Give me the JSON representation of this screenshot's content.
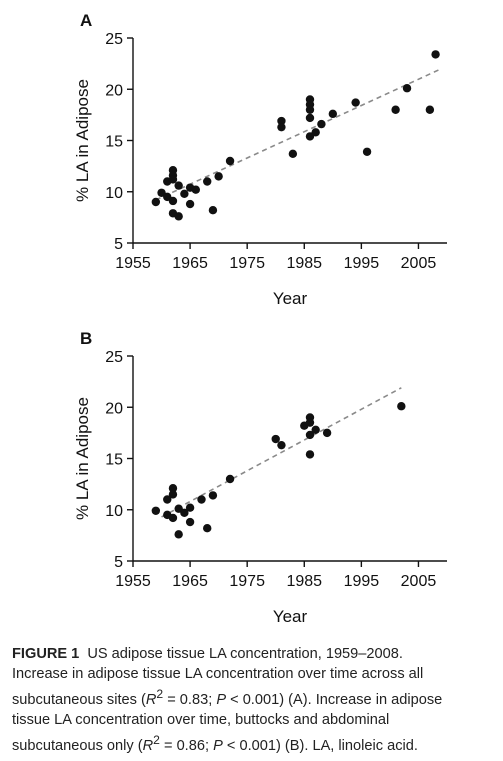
{
  "chart_data": [
    {
      "type": "scatter",
      "panel_label": "A",
      "xlabel": "Year",
      "ylabel": "% LA in Adipose",
      "xlim": [
        1955,
        2010
      ],
      "ylim": [
        5,
        25
      ],
      "x_ticks": [
        1955,
        1965,
        1975,
        1985,
        1995,
        2005
      ],
      "y_ticks": [
        5,
        10,
        15,
        20,
        25
      ],
      "trendline": {
        "style": "dashed",
        "color": "#8a8a8a",
        "x": [
          1959,
          2009
        ],
        "y": [
          9.2,
          22.0
        ]
      },
      "marker_color": "#111111",
      "points": [
        {
          "x": 1959,
          "y": 9.0
        },
        {
          "x": 1960,
          "y": 9.9
        },
        {
          "x": 1961,
          "y": 11.0
        },
        {
          "x": 1961,
          "y": 9.5
        },
        {
          "x": 1962,
          "y": 12.1
        },
        {
          "x": 1962,
          "y": 11.6
        },
        {
          "x": 1962,
          "y": 11.2
        },
        {
          "x": 1962,
          "y": 9.1
        },
        {
          "x": 1962,
          "y": 7.9
        },
        {
          "x": 1963,
          "y": 7.6
        },
        {
          "x": 1963,
          "y": 10.6
        },
        {
          "x": 1964,
          "y": 9.8
        },
        {
          "x": 1965,
          "y": 10.4
        },
        {
          "x": 1965,
          "y": 8.8
        },
        {
          "x": 1966,
          "y": 10.2
        },
        {
          "x": 1968,
          "y": 11.0
        },
        {
          "x": 1969,
          "y": 8.2
        },
        {
          "x": 1970,
          "y": 11.5
        },
        {
          "x": 1972,
          "y": 13.0
        },
        {
          "x": 1981,
          "y": 16.9
        },
        {
          "x": 1981,
          "y": 16.3
        },
        {
          "x": 1983,
          "y": 13.7
        },
        {
          "x": 1986,
          "y": 19.0
        },
        {
          "x": 1986,
          "y": 18.5
        },
        {
          "x": 1986,
          "y": 18.0
        },
        {
          "x": 1986,
          "y": 17.2
        },
        {
          "x": 1986,
          "y": 15.4
        },
        {
          "x": 1987,
          "y": 15.8
        },
        {
          "x": 1988,
          "y": 16.6
        },
        {
          "x": 1990,
          "y": 17.6
        },
        {
          "x": 1994,
          "y": 18.7
        },
        {
          "x": 1996,
          "y": 13.9
        },
        {
          "x": 2001,
          "y": 18.0
        },
        {
          "x": 2003,
          "y": 20.1
        },
        {
          "x": 2007,
          "y": 18.0
        },
        {
          "x": 2008,
          "y": 23.4
        }
      ]
    },
    {
      "type": "scatter",
      "panel_label": "B",
      "xlabel": "Year",
      "ylabel": "% LA in Adipose",
      "xlim": [
        1955,
        2010
      ],
      "ylim": [
        5,
        25
      ],
      "x_ticks": [
        1955,
        1965,
        1975,
        1985,
        1995,
        2005
      ],
      "y_ticks": [
        5,
        10,
        15,
        20,
        25
      ],
      "trendline": {
        "style": "dashed",
        "color": "#8a8a8a",
        "x": [
          1960,
          2002
        ],
        "y": [
          9.3,
          21.9
        ]
      },
      "marker_color": "#111111",
      "points": [
        {
          "x": 1959,
          "y": 9.9
        },
        {
          "x": 1961,
          "y": 11.0
        },
        {
          "x": 1961,
          "y": 9.5
        },
        {
          "x": 1962,
          "y": 12.1
        },
        {
          "x": 1962,
          "y": 11.5
        },
        {
          "x": 1962,
          "y": 9.2
        },
        {
          "x": 1963,
          "y": 7.6
        },
        {
          "x": 1963,
          "y": 10.1
        },
        {
          "x": 1964,
          "y": 9.7
        },
        {
          "x": 1965,
          "y": 10.2
        },
        {
          "x": 1965,
          "y": 8.8
        },
        {
          "x": 1967,
          "y": 11.0
        },
        {
          "x": 1968,
          "y": 8.2
        },
        {
          "x": 1969,
          "y": 11.4
        },
        {
          "x": 1972,
          "y": 13.0
        },
        {
          "x": 1980,
          "y": 16.9
        },
        {
          "x": 1981,
          "y": 16.3
        },
        {
          "x": 1985,
          "y": 18.2
        },
        {
          "x": 1986,
          "y": 19.0
        },
        {
          "x": 1986,
          "y": 18.5
        },
        {
          "x": 1986,
          "y": 17.3
        },
        {
          "x": 1986,
          "y": 15.4
        },
        {
          "x": 1987,
          "y": 17.8
        },
        {
          "x": 1989,
          "y": 17.5
        },
        {
          "x": 2002,
          "y": 20.1
        }
      ]
    }
  ],
  "caption": {
    "label": "FIGURE 1",
    "line1": "US adipose tissue LA concentration, 1959–2008.",
    "line2": "Increase in adipose tissue LA concentration over time across all",
    "line3_pre": "subcutaneous sites (",
    "r_symbol": "R",
    "superscript": "2",
    "stat_a": " = 0.83; ",
    "p_symbol": "P",
    "stat_b": " < 0.001) (A). Increase in adipose",
    "line4": "tissue LA concentration over time, buttocks and abdominal",
    "line5_pre": "subcutaneous only (",
    "stat_c": " = 0.86; ",
    "stat_d": " < 0.001) (B). LA, linoleic acid."
  }
}
